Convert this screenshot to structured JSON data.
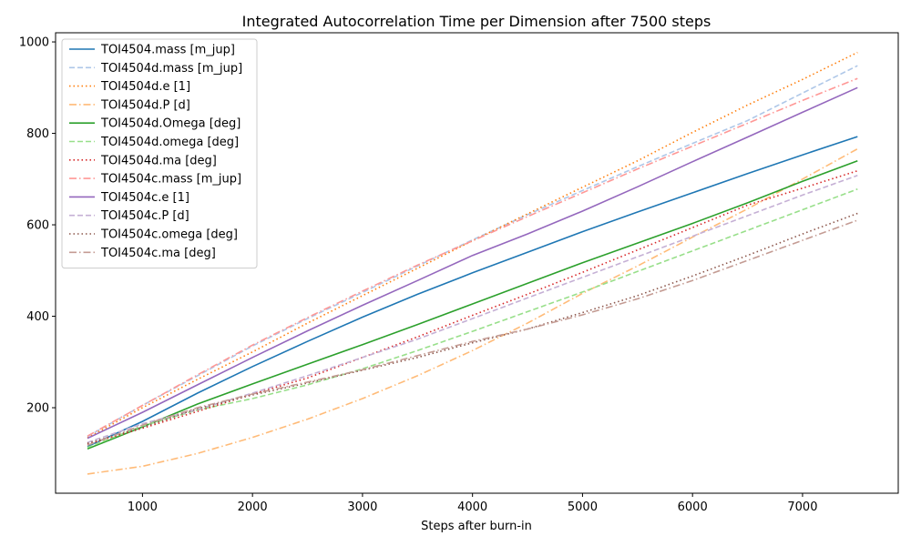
{
  "chart_data": {
    "type": "line",
    "title": "Integrated Autocorrelation Time per Dimension after 7500 steps",
    "xlabel": "Steps after burn-in",
    "ylabel": "",
    "xlim": [
      210,
      7870
    ],
    "ylim": [
      13,
      1020
    ],
    "xticks": [
      1000,
      2000,
      3000,
      4000,
      5000,
      6000,
      7000
    ],
    "xtick_labels": [
      "1000",
      "2000",
      "3000",
      "4000",
      "5000",
      "6000",
      "7000"
    ],
    "yticks": [
      200,
      400,
      600,
      800,
      1000
    ],
    "ytick_labels": [
      "200",
      "400",
      "600",
      "800",
      "1000"
    ],
    "grid": false,
    "legend_position": "upper-left",
    "x": [
      500,
      1000,
      1500,
      2000,
      2500,
      3000,
      3500,
      4000,
      4500,
      5000,
      5500,
      6000,
      6500,
      7000,
      7500
    ],
    "series": [
      {
        "name": "TOI4504.mass [m_jup]",
        "color": "#1f77b4",
        "dash": "solid",
        "values": [
          115,
          170,
          232,
          290,
          345,
          398,
          448,
          495,
          540,
          585,
          628,
          670,
          712,
          753,
          793
        ]
      },
      {
        "name": "TOI4504d.mass [m_jup]",
        "color": "#aec7e8",
        "dash": "dashed",
        "values": [
          137,
          205,
          270,
          335,
          395,
          452,
          510,
          567,
          622,
          675,
          727,
          778,
          828,
          888,
          948
        ]
      },
      {
        "name": "TOI4504d.e [1]",
        "color": "#ff7f0e",
        "dash": "dotted",
        "values": [
          134,
          200,
          262,
          322,
          385,
          445,
          505,
          565,
          624,
          682,
          740,
          802,
          862,
          918,
          977
        ]
      },
      {
        "name": "TOI4504d.P [d]",
        "color": "#ffbb78",
        "dash": "dashdot",
        "values": [
          55,
          72,
          100,
          135,
          175,
          220,
          270,
          325,
          385,
          450,
          510,
          573,
          635,
          700,
          766
        ]
      },
      {
        "name": "TOI4504d.Omega [deg]",
        "color": "#2ca02c",
        "dash": "solid",
        "values": [
          110,
          158,
          208,
          252,
          295,
          338,
          382,
          427,
          472,
          517,
          560,
          603,
          648,
          695,
          740
        ]
      },
      {
        "name": "TOI4504d.omega [deg]",
        "color": "#98df8a",
        "dash": "dashed",
        "values": [
          113,
          160,
          195,
          220,
          250,
          285,
          325,
          367,
          410,
          453,
          498,
          543,
          588,
          633,
          678
        ]
      },
      {
        "name": "TOI4504d.ma [deg]",
        "color": "#d62728",
        "dash": "dotted",
        "values": [
          120,
          155,
          192,
          230,
          265,
          310,
          355,
          402,
          448,
          496,
          545,
          594,
          643,
          680,
          718
        ]
      },
      {
        "name": "TOI4504c.mass [m_jup]",
        "color": "#ff9896",
        "dash": "dashdot",
        "values": [
          138,
          205,
          272,
          337,
          397,
          455,
          512,
          565,
          618,
          670,
          722,
          772,
          822,
          872,
          920
        ]
      },
      {
        "name": "TOI4504c.e [1]",
        "color": "#9467bd",
        "dash": "solid",
        "values": [
          133,
          190,
          250,
          310,
          368,
          424,
          478,
          533,
          580,
          630,
          683,
          738,
          792,
          846,
          900
        ]
      },
      {
        "name": "TOI4504c.P [d]",
        "color": "#c5b0d5",
        "dash": "dashed",
        "values": [
          124,
          165,
          196,
          232,
          270,
          310,
          350,
          395,
          440,
          485,
          530,
          575,
          620,
          665,
          708
        ]
      },
      {
        "name": "TOI4504c.omega [deg]",
        "color": "#8c564b",
        "dash": "dotted",
        "values": [
          122,
          157,
          198,
          228,
          254,
          282,
          310,
          342,
          372,
          408,
          445,
          488,
          533,
          580,
          625
        ]
      },
      {
        "name": "TOI4504c.ma [deg]",
        "color": "#c49c94",
        "dash": "dashdot",
        "values": [
          118,
          162,
          200,
          230,
          256,
          283,
          314,
          345,
          372,
          403,
          438,
          478,
          522,
          566,
          610
        ]
      }
    ]
  }
}
